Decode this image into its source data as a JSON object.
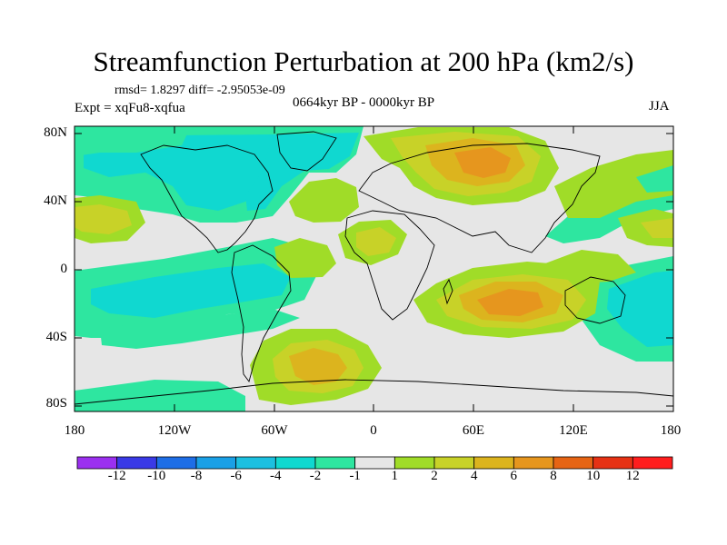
{
  "title": "Streamfunction Perturbation at 200 hPa (km2/s)",
  "stats": "rmsd= 1.8297 diff= -2.95053e-09",
  "experiment": "Expt = xqFu8-xqfua",
  "period": "0664kyr BP - 0000kyr BP",
  "season": "JJA",
  "y_axis_labels": [
    "80N",
    "40N",
    "0",
    "40S",
    "80S"
  ],
  "x_axis_labels": [
    "180",
    "120W",
    "60W",
    "0",
    "60E",
    "120E",
    "180"
  ],
  "colorbar": {
    "tick_labels": [
      "-12",
      "-10",
      "-8",
      "-6",
      "-4",
      "-2",
      "-1",
      "1",
      "2",
      "4",
      "6",
      "8",
      "10",
      "12"
    ],
    "colors": [
      "#9b30f0",
      "#3a3ae6",
      "#1e6ee6",
      "#1aa0e6",
      "#1cc0e0",
      "#10d8d0",
      "#2ee6a0",
      "#e6e6e6",
      "#a0dc28",
      "#c8d228",
      "#dcb41e",
      "#e6961e",
      "#e66414",
      "#e63214",
      "#ff1e1e"
    ]
  },
  "colors": {
    "neutral": "#e6e6e6",
    "coast": "#000000"
  }
}
